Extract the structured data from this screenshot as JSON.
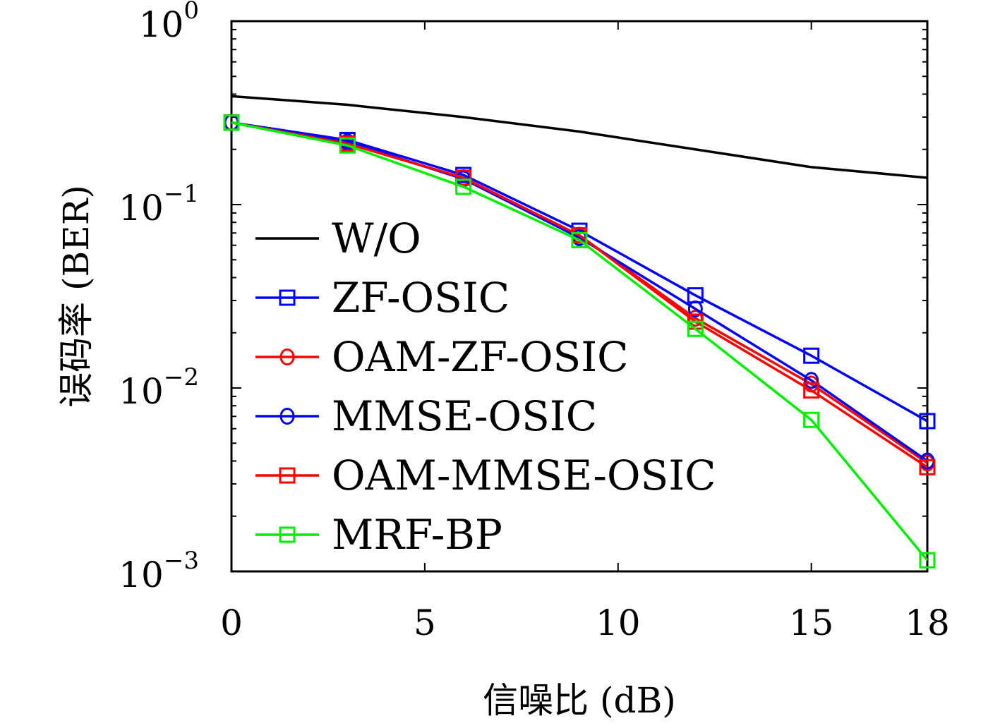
{
  "chart_data": {
    "type": "line",
    "xlabel": "信噪比 (dB)",
    "ylabel": "误码率 (BER)",
    "x": [
      0,
      3,
      6,
      9,
      12,
      15,
      18
    ],
    "xlim": [
      0,
      18
    ],
    "xticks": [
      0,
      5,
      10,
      15,
      18
    ],
    "xtick_labels": [
      "0",
      "5",
      "10",
      "15",
      "18"
    ],
    "ylim": [
      0.001,
      1
    ],
    "yscale": "log",
    "yticks": [
      {
        "value": 1,
        "base": "10",
        "exp": "0"
      },
      {
        "value": 0.1,
        "base": "10",
        "exp": "−1"
      },
      {
        "value": 0.01,
        "base": "10",
        "exp": "−2"
      },
      {
        "value": 0.001,
        "base": "10",
        "exp": "−3"
      }
    ],
    "grid": false,
    "legend_position": "center-left",
    "series": [
      {
        "name": "W/O",
        "color": "#000000",
        "marker": "none",
        "values": [
          0.39,
          0.35,
          0.3,
          0.25,
          0.2,
          0.16,
          0.14
        ]
      },
      {
        "name": "ZF-OSIC",
        "color": "#0000ff",
        "marker": "square",
        "values": [
          0.28,
          0.225,
          0.145,
          0.072,
          0.032,
          0.015,
          0.0066
        ]
      },
      {
        "name": "OAM-ZF-OSIC",
        "color": "#ff0000",
        "marker": "circle",
        "values": [
          0.28,
          0.215,
          0.14,
          0.068,
          0.024,
          0.0105,
          0.0039
        ]
      },
      {
        "name": "MMSE-OSIC",
        "color": "#0000ff",
        "marker": "circle",
        "values": [
          0.28,
          0.22,
          0.138,
          0.066,
          0.027,
          0.011,
          0.004
        ]
      },
      {
        "name": "OAM-MMSE-OSIC",
        "color": "#ff0000",
        "marker": "square",
        "values": [
          0.28,
          0.215,
          0.14,
          0.068,
          0.023,
          0.0097,
          0.0037
        ]
      },
      {
        "name": "MRF-BP",
        "color": "#00ee00",
        "marker": "square",
        "values": [
          0.28,
          0.21,
          0.125,
          0.064,
          0.021,
          0.0067,
          0.00115
        ]
      }
    ]
  }
}
